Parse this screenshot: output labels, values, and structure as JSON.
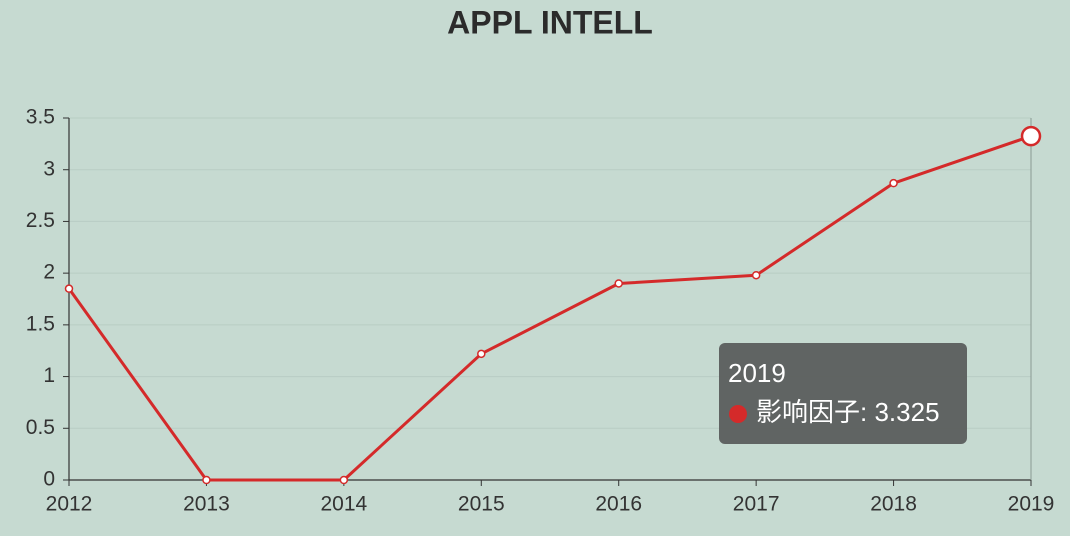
{
  "chart_data": {
    "type": "line",
    "title": "APPL INTELL",
    "categories": [
      "2012",
      "2013",
      "2014",
      "2015",
      "2016",
      "2017",
      "2018",
      "2019"
    ],
    "series": [
      {
        "name": "影响因子",
        "color": "#d42a2a",
        "values": [
          1.85,
          0,
          0,
          1.22,
          1.9,
          1.98,
          2.87,
          3.325
        ]
      }
    ],
    "ylim": [
      0,
      3.5
    ],
    "yticks": [
      0,
      0.5,
      1,
      1.5,
      2,
      2.5,
      3,
      3.5
    ],
    "grid": true
  }
}
